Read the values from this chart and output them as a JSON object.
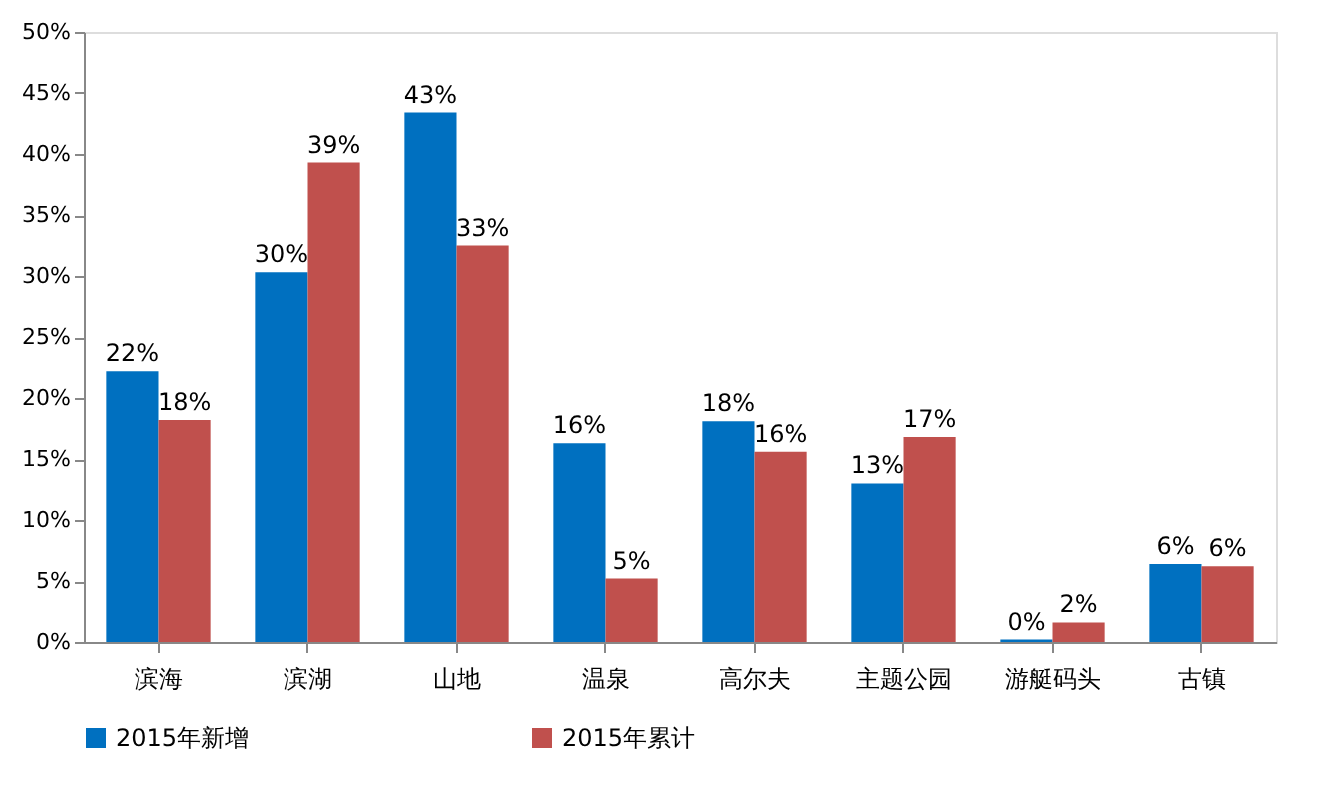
{
  "chart_data": {
    "type": "bar",
    "categories": [
      "滨海",
      "滨湖",
      "山地",
      "温泉",
      "高尔夫",
      "主题公园",
      "游艇码头",
      "古镇"
    ],
    "series": [
      {
        "name": "2015年新增",
        "color": "#0070c0",
        "values": [
          22.2,
          30.3,
          43.4,
          16.3,
          18.1,
          13.0,
          0.2,
          6.4
        ],
        "value_labels": [
          "22%",
          "30%",
          "43%",
          "16%",
          "18%",
          "13%",
          "0%",
          "6%"
        ]
      },
      {
        "name": "2015年累计",
        "color": "#c0504d",
        "values": [
          18.2,
          39.3,
          32.5,
          5.2,
          15.6,
          16.8,
          1.6,
          6.2
        ],
        "value_labels": [
          "18%",
          "39%",
          "33%",
          "5%",
          "16%",
          "17%",
          "2%",
          "6%"
        ]
      }
    ],
    "ylim": [
      0,
      50
    ],
    "yticks": [
      {
        "value": 0,
        "label": "0%"
      },
      {
        "value": 5,
        "label": "5%"
      },
      {
        "value": 10,
        "label": "10%"
      },
      {
        "value": 15,
        "label": "15%"
      },
      {
        "value": 20,
        "label": "20%"
      },
      {
        "value": 25,
        "label": "25%"
      },
      {
        "value": 30,
        "label": "30%"
      },
      {
        "value": 35,
        "label": "35%"
      },
      {
        "value": 40,
        "label": "40%"
      },
      {
        "value": 45,
        "label": "45%"
      },
      {
        "value": 50,
        "label": "50%"
      }
    ],
    "grid": false,
    "legend": "bottom"
  }
}
